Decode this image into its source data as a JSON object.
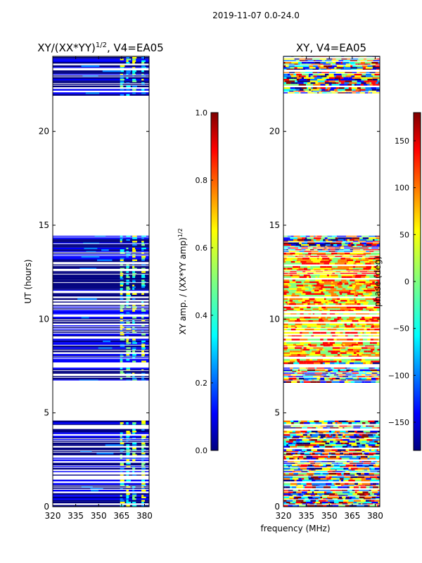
{
  "figure": {
    "suptitle": "2019-11-07 0.0-24.0",
    "shared_xlabel": "frequency (MHz)"
  },
  "chart_data": [
    {
      "type": "heatmap",
      "title_main": "XY/(XX*YY)",
      "title_exp": "1/2",
      "title_rest": ", V4=EA05",
      "xlabel": "frequency (MHz)",
      "ylabel": "UT (hours)",
      "xlim": [
        320,
        383
      ],
      "ylim": [
        0,
        24
      ],
      "xticks": [
        320,
        335,
        350,
        365,
        380
      ],
      "yticks": [
        0,
        5,
        10,
        15,
        20
      ],
      "data_rows_hours": [
        [
          0,
          4.5
        ],
        [
          6.6,
          7.4
        ],
        [
          7.6,
          14.4
        ],
        [
          21.9,
          24
        ]
      ],
      "colorbar": {
        "label_main": "XY amp. / (XX*YY amp)",
        "label_exp": "1/2",
        "range": [
          0.0,
          1.0
        ],
        "ticks": [
          "0.0",
          "0.2",
          "0.4",
          "0.6",
          "0.8",
          "1.0"
        ],
        "tick_values": [
          0.0,
          0.2,
          0.4,
          0.6,
          0.8,
          1.0
        ],
        "colormap": "jet"
      }
    },
    {
      "type": "heatmap",
      "title": "XY, V4=EA05",
      "xlabel": "frequency (MHz)",
      "xlim": [
        320,
        383
      ],
      "ylim": [
        0,
        24
      ],
      "xticks": [
        320,
        335,
        350,
        365,
        380
      ],
      "yticks": [
        0,
        5,
        10,
        15,
        20
      ],
      "data_rows_hours": [
        [
          0,
          4.5
        ],
        [
          6.6,
          7.4
        ],
        [
          7.6,
          14.4
        ],
        [
          21.9,
          24
        ]
      ],
      "colorbar": {
        "label": "phase (deg)",
        "range": [
          -180,
          180
        ],
        "ticks": [
          "−150",
          "−100",
          "−50",
          "0",
          "50",
          "100",
          "150"
        ],
        "tick_values": [
          -150,
          -100,
          -50,
          0,
          50,
          100,
          150
        ],
        "colormap": "jet"
      }
    }
  ],
  "colors": {
    "jet": [
      "#00007f",
      "#0000ff",
      "#007fff",
      "#00ffff",
      "#7fff7f",
      "#ffff00",
      "#ff7f00",
      "#ff0000",
      "#7f0000"
    ]
  }
}
